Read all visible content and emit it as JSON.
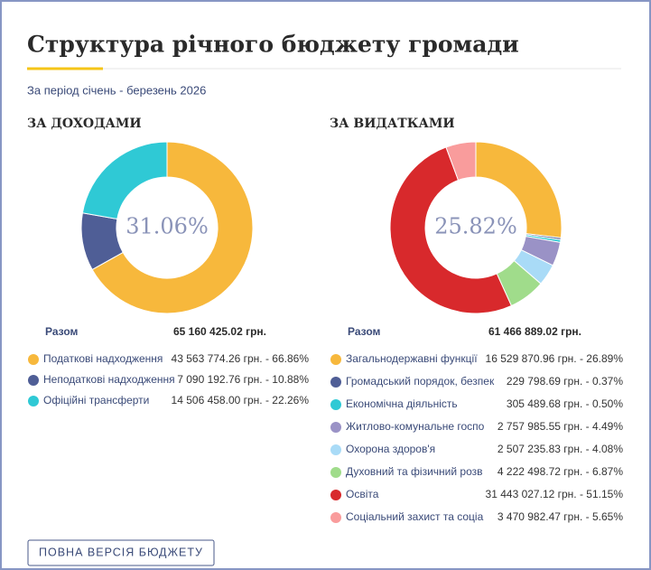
{
  "title": "Структура річного бюджету громади",
  "subtitle": "За період січень - березень 2026",
  "button": "ПОВНА ВЕРСІЯ БЮДЖЕТУ",
  "chart_data": [
    {
      "type": "pie",
      "title": "ЗА ДОХОДАМИ",
      "center_label": "31.06%",
      "total_label": "Разом",
      "total": "65 160 425.02 грн.",
      "categories": [
        "Податкові надходження",
        "Неподаткові надходження",
        "Офіційні трансферти"
      ],
      "values": [
        66.86,
        10.88,
        22.26
      ],
      "value_labels": [
        "43 563 774.26 грн. - 66.86%",
        "7 090 192.76 грн. - 10.88%",
        "14 506 458.00 грн. - 22.26%"
      ],
      "colors": [
        "#f7b83c",
        "#4f5e96",
        "#2fc9d5"
      ]
    },
    {
      "type": "pie",
      "title": "ЗА ВИДАТКАМИ",
      "center_label": "25.82%",
      "total_label": "Разом",
      "total": "61 466 889.02 грн.",
      "categories": [
        "Загальнодержавні функції",
        "Громадський порядок, безпек",
        "Економічна діяльність",
        "Житлово-комунальне госпо",
        "Охорона здоров'я",
        "Духовний та фізичний розв",
        "Освіта",
        "Соціальний захист та соціа"
      ],
      "values": [
        26.89,
        0.37,
        0.5,
        4.49,
        4.08,
        6.87,
        51.15,
        5.65
      ],
      "value_labels": [
        "16 529 870.96 грн. - 26.89%",
        "229 798.69 грн. - 0.37%",
        "305 489.68 грн. - 0.50%",
        "2 757 985.55 грн. - 4.49%",
        "2 507 235.83 грн. - 4.08%",
        "4 222 498.72 грн. - 6.87%",
        "31 443 027.12 грн. - 51.15%",
        "3 470 982.47 грн. - 5.65%"
      ],
      "colors": [
        "#f7b83c",
        "#4f5e96",
        "#2fc9d5",
        "#9a92c6",
        "#a9dbf7",
        "#a0dc8b",
        "#d8292c",
        "#f99c9c"
      ]
    }
  ]
}
